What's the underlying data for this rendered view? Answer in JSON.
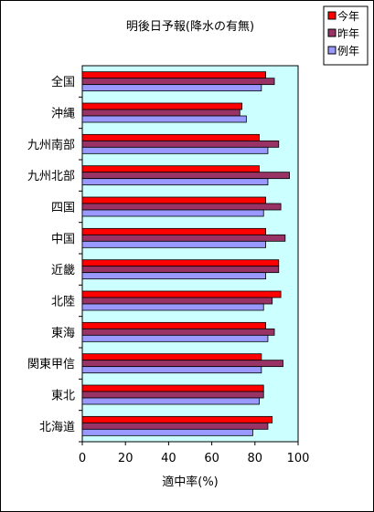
{
  "chart_data": {
    "type": "bar",
    "orientation": "horizontal",
    "title": "明後日予報(降水の有無)",
    "xlabel": "適中率(%)",
    "ylabel": "",
    "xlim": [
      0,
      100
    ],
    "xticks": [
      0,
      20,
      40,
      60,
      80,
      100
    ],
    "grid": false,
    "legend_position": "top-right",
    "categories": [
      "全国",
      "沖縄",
      "九州南部",
      "九州北部",
      "四国",
      "中国",
      "近畿",
      "北陸",
      "東海",
      "関東甲信",
      "東北",
      "北海道"
    ],
    "series": [
      {
        "name": "今年",
        "color": "#ff0000",
        "values": [
          85,
          74,
          82,
          82,
          85,
          85,
          91,
          92,
          85,
          83,
          84,
          88
        ]
      },
      {
        "name": "昨年",
        "color": "#993366",
        "values": [
          89,
          73,
          91,
          96,
          92,
          94,
          91,
          88,
          89,
          93,
          84,
          86
        ]
      },
      {
        "name": "例年",
        "color": "#9999ff",
        "values": [
          83,
          76,
          86,
          86,
          84,
          85,
          85,
          84,
          86,
          83,
          82,
          79
        ]
      }
    ],
    "colors": {
      "plot_background": "#ccffff",
      "frame": "#000000"
    }
  }
}
